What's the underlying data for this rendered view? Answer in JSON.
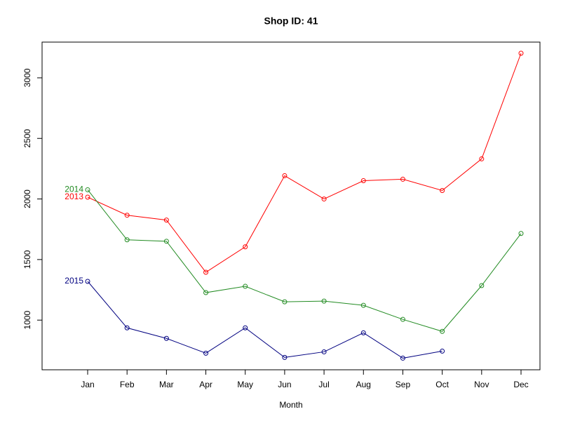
{
  "chart_data": {
    "type": "line",
    "title": "Shop ID: 41",
    "x_label": "Month",
    "categories": [
      "Jan",
      "Feb",
      "Mar",
      "Apr",
      "May",
      "Jun",
      "Jul",
      "Aug",
      "Sep",
      "Oct",
      "Nov",
      "Dec"
    ],
    "series": [
      {
        "name": "2013",
        "color": "#ff0000",
        "values": [
          2015,
          1866,
          1826,
          1395,
          1605,
          2192,
          2000,
          2151,
          2163,
          2070,
          2331,
          3203
        ]
      },
      {
        "name": "2014",
        "color": "#228b22",
        "values": [
          2076,
          1663,
          1651,
          1227,
          1279,
          1151,
          1157,
          1122,
          1006,
          907,
          1285,
          1715
        ]
      },
      {
        "name": "2015",
        "color": "#000080",
        "values": [
          1320,
          936,
          849,
          727,
          936,
          692,
          738,
          895,
          686,
          744,
          null,
          null
        ]
      }
    ],
    "ylim": [
      590,
      3295
    ],
    "yticks": [
      1000,
      1500,
      2000,
      2500,
      3000
    ],
    "grid": false
  }
}
